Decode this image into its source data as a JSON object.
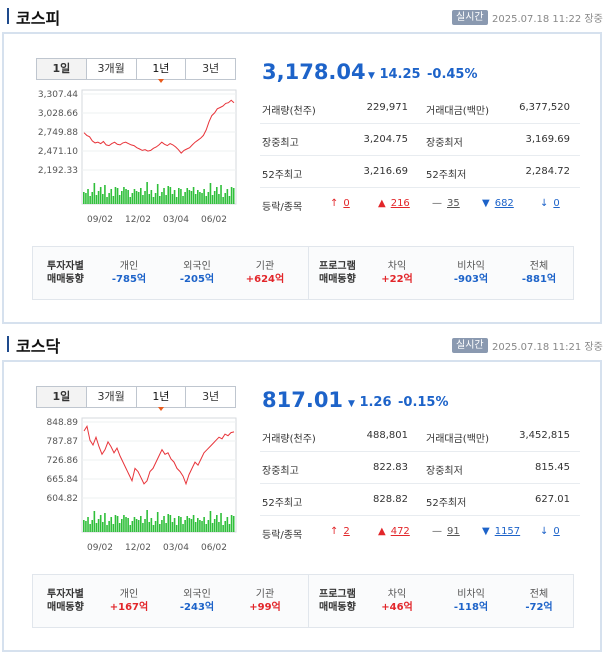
{
  "markets": [
    {
      "name": "코스피",
      "realtime_label": "실시간",
      "timestamp": "2025.07.18 11:22 장중",
      "tabs": [
        "1일",
        "3개월",
        "1년",
        "3년"
      ],
      "selected_tab": "1년",
      "price": "3,178.04",
      "change_arrow": "▼",
      "change": "14.25",
      "change_pct": "-0.45%",
      "stats": {
        "volume_label": "거래량(천주)",
        "volume": "229,971",
        "amount_label": "거래대금(백만)",
        "amount": "6,377,520",
        "intraday_high_label": "장중최고",
        "intraday_high": "3,204.75",
        "intraday_low_label": "장중최저",
        "intraday_low": "3,169.69",
        "week52_high_label": "52주최고",
        "week52_high": "3,216.69",
        "week52_low_label": "52주최저",
        "week52_low": "2,284.72",
        "breadth_label": "등락/종목",
        "upper_limit": "0",
        "rising": "216",
        "flat": "35",
        "falling": "682",
        "lower_limit": "0"
      },
      "flows": {
        "investor_header": [
          "투자자별",
          "매매동향"
        ],
        "individual_label": "개인",
        "individual": "-785억",
        "foreign_label": "외국인",
        "foreign": "-205억",
        "institution_label": "기관",
        "institution": "+624억",
        "program_header": [
          "프로그램",
          "매매동향"
        ],
        "arbitrage_label": "차익",
        "arbitrage": "+22억",
        "non_arbitrage_label": "비차익",
        "non_arbitrage": "-903억",
        "total_label": "전체",
        "total": "-881억"
      },
      "chart_data": {
        "type": "line",
        "y_ticks": [
          "3,307.44",
          "3,028.66",
          "2,749.88",
          "2,471.10",
          "2,192.33"
        ],
        "x_ticks": [
          "09/02",
          "12/02",
          "03/04",
          "06/02"
        ],
        "ylim": [
          2192.33,
          3307.44
        ],
        "values": [
          2740,
          2700,
          2680,
          2620,
          2590,
          2600,
          2580,
          2610,
          2560,
          2550,
          2580,
          2600,
          2570,
          2560,
          2590,
          2600,
          2580,
          2560,
          2550,
          2520,
          2500,
          2480,
          2490,
          2470,
          2480,
          2510,
          2530,
          2560,
          2600,
          2570,
          2550,
          2580,
          2560,
          2530,
          2490,
          2440,
          2480,
          2500,
          2520,
          2560,
          2600,
          2630,
          2660,
          2700,
          2780,
          2900,
          2990,
          3030,
          3090,
          3110,
          3130,
          3170,
          3180,
          3215,
          3178
        ]
      }
    },
    {
      "name": "코스닥",
      "realtime_label": "실시간",
      "timestamp": "2025.07.18 11:21 장중",
      "tabs": [
        "1일",
        "3개월",
        "1년",
        "3년"
      ],
      "selected_tab": "1년",
      "price": "817.01",
      "change_arrow": "▼",
      "change": "1.26",
      "change_pct": "-0.15%",
      "stats": {
        "volume_label": "거래량(천주)",
        "volume": "488,801",
        "amount_label": "거래대금(백만)",
        "amount": "3,452,815",
        "intraday_high_label": "장중최고",
        "intraday_high": "822.83",
        "intraday_low_label": "장중최저",
        "intraday_low": "815.45",
        "week52_high_label": "52주최고",
        "week52_high": "828.82",
        "week52_low_label": "52주최저",
        "week52_low": "627.01",
        "breadth_label": "등락/종목",
        "upper_limit": "2",
        "rising": "472",
        "flat": "91",
        "falling": "1157",
        "lower_limit": "0"
      },
      "flows": {
        "investor_header": [
          "투자자별",
          "매매동향"
        ],
        "individual_label": "개인",
        "individual": "+167억",
        "foreign_label": "외국인",
        "foreign": "-243억",
        "institution_label": "기관",
        "institution": "+99억",
        "program_header": [
          "프로그램",
          "매매동향"
        ],
        "arbitrage_label": "차익",
        "arbitrage": "+46억",
        "non_arbitrage_label": "비차익",
        "non_arbitrage": "-118억",
        "total_label": "전체",
        "total": "-72억"
      },
      "chart_data": {
        "type": "line",
        "y_ticks": [
          "848.89",
          "787.87",
          "726.86",
          "665.84",
          "604.82"
        ],
        "x_ticks": [
          "09/02",
          "12/02",
          "03/04",
          "06/02"
        ],
        "ylim": [
          604.82,
          848.89
        ],
        "values": [
          820,
          835,
          790,
          775,
          800,
          770,
          745,
          760,
          785,
          770,
          750,
          765,
          740,
          720,
          700,
          680,
          660,
          700,
          690,
          670,
          650,
          660,
          690,
          700,
          720,
          740,
          760,
          745,
          750,
          730,
          720,
          700,
          690,
          675,
          650,
          680,
          700,
          720,
          710,
          730,
          750,
          760,
          770,
          780,
          790,
          800,
          795,
          810,
          805,
          815,
          817
        ]
      }
    }
  ]
}
